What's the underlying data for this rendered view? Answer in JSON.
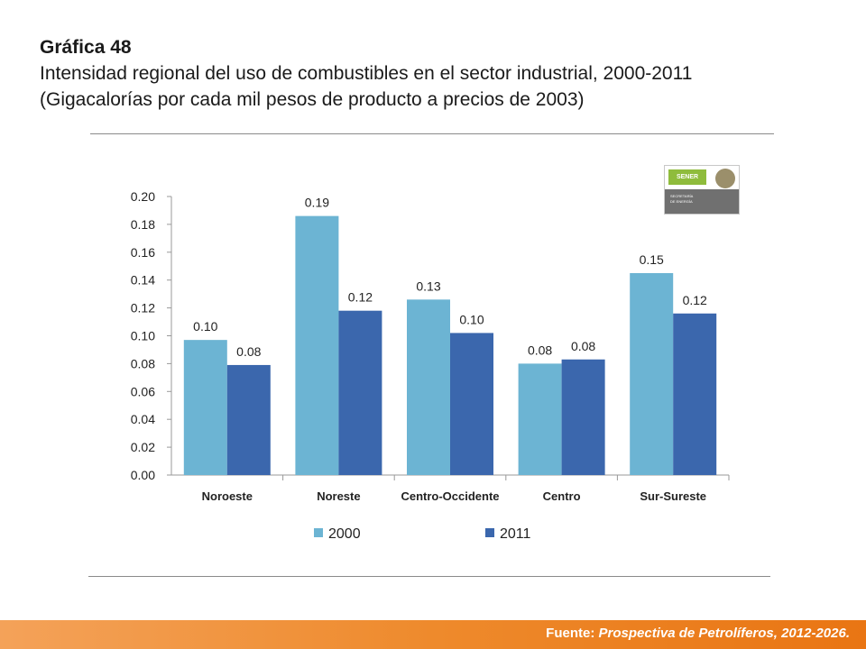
{
  "header": {
    "label": "Gráfica 48",
    "title": "Intensidad regional del uso de combustibles en el sector industrial, 2000-2011",
    "subtitle": "(Gigacalorías por cada mil pesos de producto a precios de 2003)"
  },
  "logo": {
    "name": "SENER",
    "subtext_line1": "SECRETARÍA",
    "subtext_line2": "DE ENERGÍA"
  },
  "footer": {
    "prefix": "Fuente:",
    "source": "Prospectiva de Petrolíferos, 2012-2026."
  },
  "colors": {
    "series_2000": "#6cb4d3",
    "series_2011": "#3b67ad",
    "axis": "#999999",
    "footer": "#ef8a2d"
  },
  "chart_data": {
    "type": "bar",
    "title": "Intensidad regional del uso de combustibles en el sector industrial, 2000-2011",
    "xlabel": "",
    "ylabel": "",
    "categories": [
      "Noroeste",
      "Noreste",
      "Centro-Occidente",
      "Centro",
      "Sur-Sureste"
    ],
    "ylim": [
      0,
      0.2
    ],
    "yticks": [
      "0.00",
      "0.02",
      "0.04",
      "0.06",
      "0.08",
      "0.10",
      "0.12",
      "0.14",
      "0.16",
      "0.18",
      "0.20"
    ],
    "series": [
      {
        "name": "2000",
        "values": [
          0.097,
          0.186,
          0.126,
          0.08,
          0.145
        ],
        "labels": [
          "0.10",
          "0.19",
          "0.13",
          "0.08",
          "0.15"
        ]
      },
      {
        "name": "2011",
        "values": [
          0.079,
          0.118,
          0.102,
          0.083,
          0.116
        ],
        "labels": [
          "0.08",
          "0.12",
          "0.10",
          "0.08",
          "0.12"
        ]
      }
    ],
    "legend": "bottom"
  }
}
